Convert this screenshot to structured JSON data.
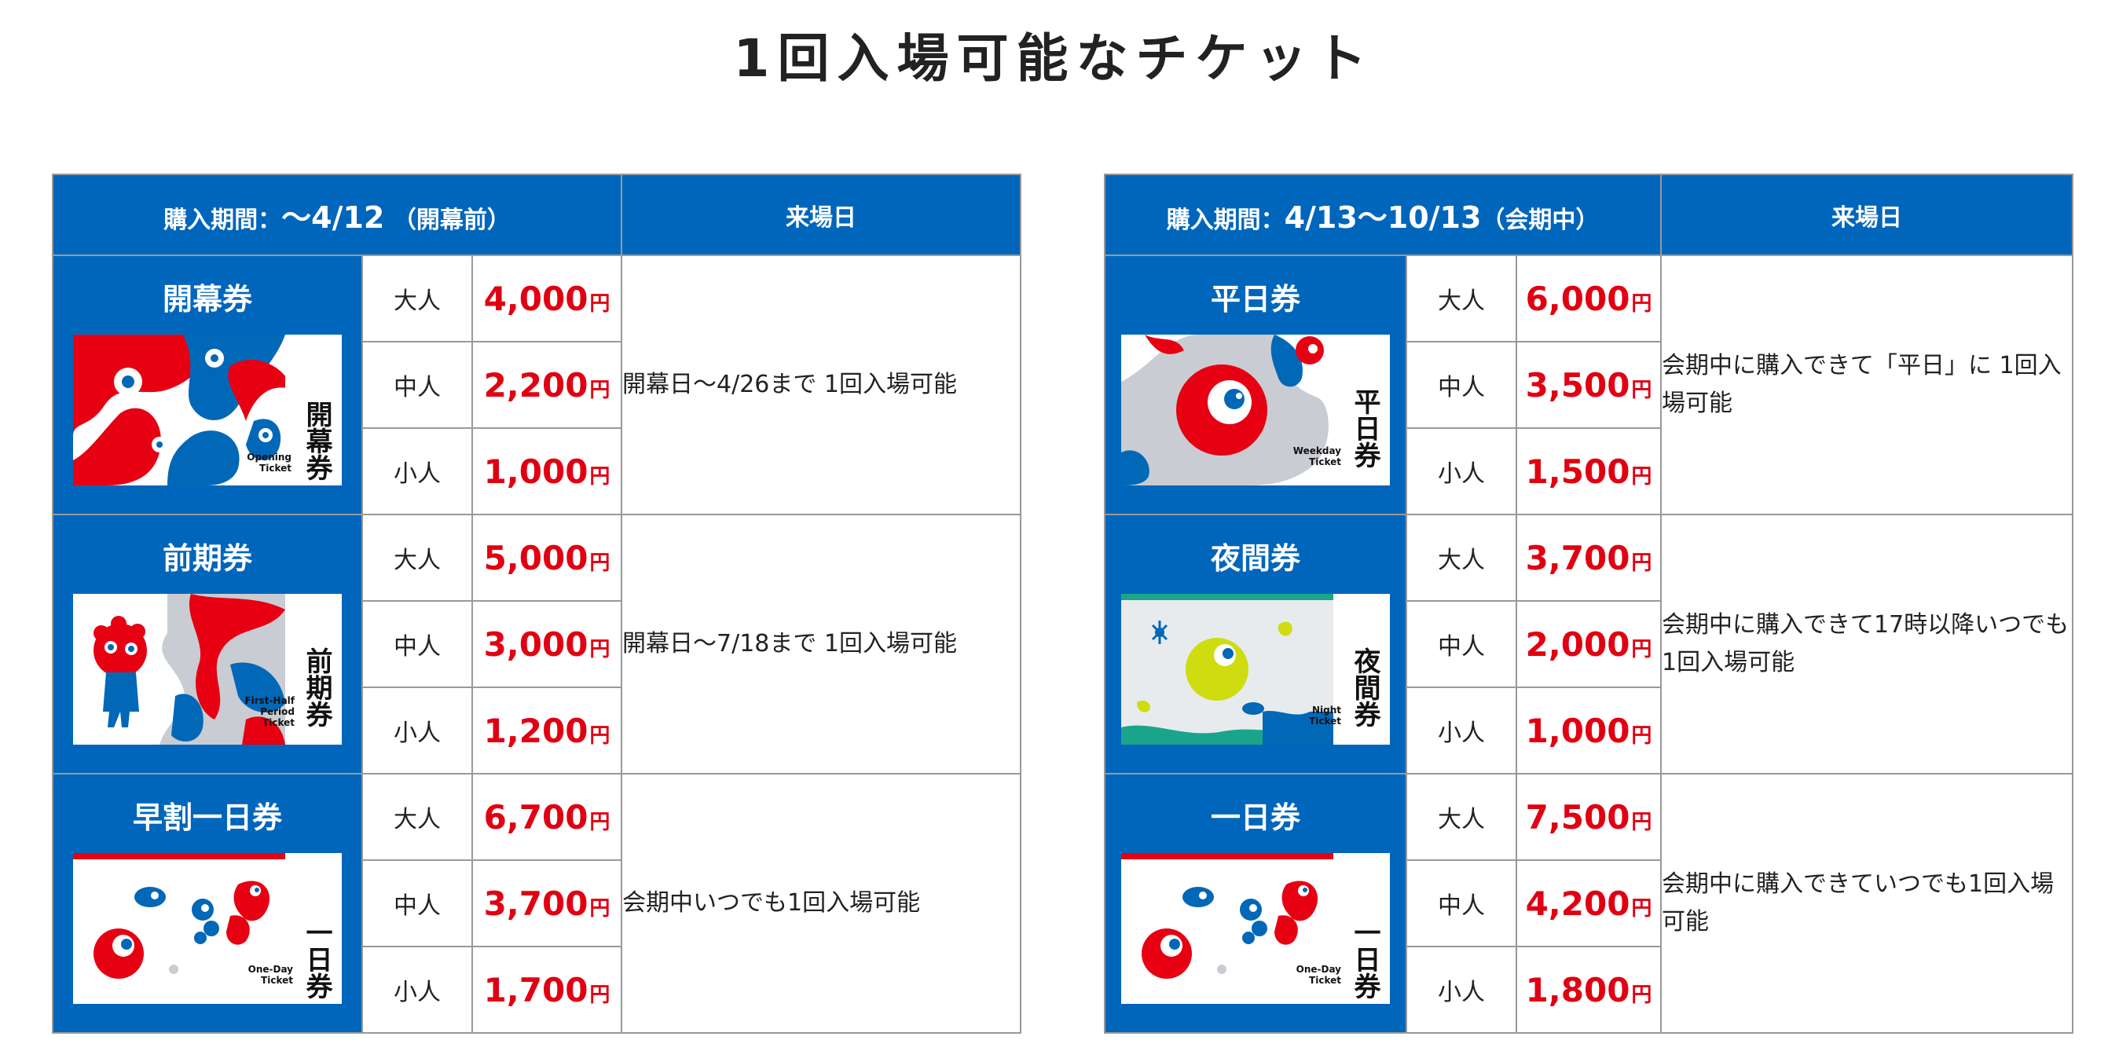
{
  "page": {
    "title": "1回入場可能なチケット"
  },
  "colors": {
    "header_blue": "#0066bb",
    "price_red": "#e00012",
    "border": "#999999",
    "mascot_red": "#e60012",
    "mascot_blue": "#0068b7"
  },
  "tables": [
    {
      "period_label": "購入期間：",
      "period_range": "～4/12",
      "period_note": "（開幕前）",
      "visit_header": "来場日",
      "tickets": [
        {
          "name": "開幕券",
          "image": {
            "vertical_label": "開幕券",
            "en_label": [
              "Opening",
              "Ticket"
            ]
          },
          "prices": [
            {
              "age": "大人",
              "amount": "4,000",
              "unit": "円"
            },
            {
              "age": "中人",
              "amount": "2,200",
              "unit": "円"
            },
            {
              "age": "小人",
              "amount": "1,000",
              "unit": "円"
            }
          ],
          "note": "開幕日～4/26まで 1回入場可能"
        },
        {
          "name": "前期券",
          "image": {
            "vertical_label": "前期券",
            "en_label": [
              "First-Half",
              "Period",
              "Ticket"
            ]
          },
          "prices": [
            {
              "age": "大人",
              "amount": "5,000",
              "unit": "円"
            },
            {
              "age": "中人",
              "amount": "3,000",
              "unit": "円"
            },
            {
              "age": "小人",
              "amount": "1,200",
              "unit": "円"
            }
          ],
          "note": "開幕日～7/18まで 1回入場可能"
        },
        {
          "name": "早割一日券",
          "image": {
            "vertical_label": "一日券",
            "en_label": [
              "One-Day",
              "Ticket"
            ]
          },
          "prices": [
            {
              "age": "大人",
              "amount": "6,700",
              "unit": "円"
            },
            {
              "age": "中人",
              "amount": "3,700",
              "unit": "円"
            },
            {
              "age": "小人",
              "amount": "1,700",
              "unit": "円"
            }
          ],
          "note": "会期中いつでも1回入場可能"
        }
      ]
    },
    {
      "period_label": "購入期間：",
      "period_range": "4/13～10/13",
      "period_note": "（会期中）",
      "visit_header": "来場日",
      "tickets": [
        {
          "name": "平日券",
          "image": {
            "vertical_label": "平日券",
            "en_label": [
              "Weekday",
              "Ticket"
            ]
          },
          "prices": [
            {
              "age": "大人",
              "amount": "6,000",
              "unit": "円"
            },
            {
              "age": "中人",
              "amount": "3,500",
              "unit": "円"
            },
            {
              "age": "小人",
              "amount": "1,500",
              "unit": "円"
            }
          ],
          "note": "会期中に購入できて「平日」に 1回入場可能"
        },
        {
          "name": "夜間券",
          "image": {
            "vertical_label": "夜間券",
            "en_label": [
              "Night",
              "Ticket"
            ]
          },
          "prices": [
            {
              "age": "大人",
              "amount": "3,700",
              "unit": "円"
            },
            {
              "age": "中人",
              "amount": "2,000",
              "unit": "円"
            },
            {
              "age": "小人",
              "amount": "1,000",
              "unit": "円"
            }
          ],
          "note": "会期中に購入できて17時以降いつでも 1回入場可能"
        },
        {
          "name": "一日券",
          "image": {
            "vertical_label": "一日券",
            "en_label": [
              "One-Day",
              "Ticket"
            ]
          },
          "prices": [
            {
              "age": "大人",
              "amount": "7,500",
              "unit": "円"
            },
            {
              "age": "中人",
              "amount": "4,200",
              "unit": "円"
            },
            {
              "age": "小人",
              "amount": "1,800",
              "unit": "円"
            }
          ],
          "note": "会期中に購入できていつでも1回入場可能"
        }
      ]
    }
  ]
}
